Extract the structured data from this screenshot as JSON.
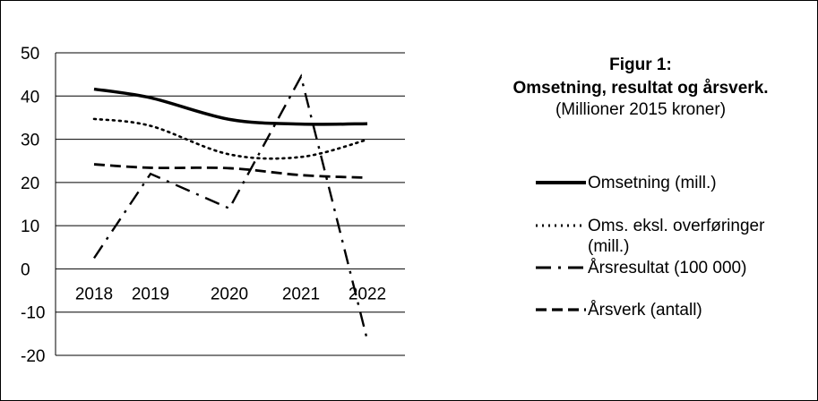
{
  "chart_data": {
    "type": "line",
    "title": "Figur 1:",
    "subtitle": "Omsetning, resultat og årsverk.",
    "unit_note": "(Millioner 2015  kroner)",
    "categories": [
      "2018",
      "2019",
      "2020",
      "2021",
      "2022"
    ],
    "ylim": [
      -20,
      50
    ],
    "yticks": [
      50,
      40,
      30,
      20,
      10,
      0,
      -10,
      -20
    ],
    "ytick_labels": [
      "50",
      "40",
      "30",
      "20",
      "10",
      "0",
      "-10",
      "-20"
    ],
    "grid": true,
    "legend_position": "right",
    "series": [
      {
        "name": "Omsetning (mill.)",
        "values": [
          41.6,
          39.6,
          34.6,
          33.5,
          33.6
        ],
        "dash": "solid",
        "color": "#000000"
      },
      {
        "name": "Oms. eksl. overføringer (mill.)",
        "name_lines": [
          "Oms. eksl. overføringer",
          "(mill.)"
        ],
        "values": [
          34.7,
          33.1,
          26.5,
          25.9,
          29.9
        ],
        "dash": "dotted",
        "color": "#000000"
      },
      {
        "name": "Årsresultat (100 000)",
        "values": [
          2.5,
          22.0,
          14.0,
          44.5,
          -16.5
        ],
        "dash": "dashdot",
        "color": "#000000"
      },
      {
        "name": "Årsverk (antall)",
        "values": [
          24.2,
          23.4,
          23.3,
          21.7,
          21.1
        ],
        "dash": "dashed",
        "color": "#000000"
      }
    ]
  }
}
